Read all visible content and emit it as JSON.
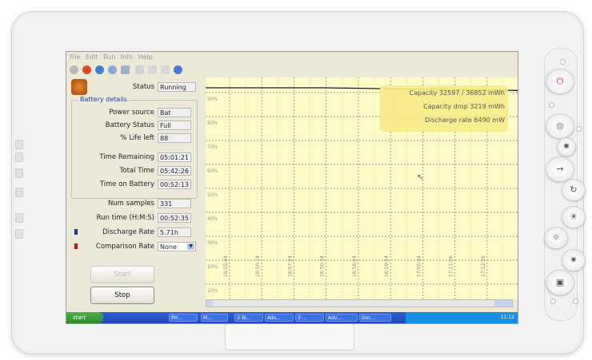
{
  "menu": [
    "File",
    "Edit",
    "Run",
    "Info",
    "Help"
  ],
  "status": {
    "label": "Status",
    "value": "Running"
  },
  "battery_details": {
    "title": "Battery details",
    "rows": [
      {
        "label": "Power source",
        "value": "Bat"
      },
      {
        "label": "Battery Status",
        "value": "Full"
      },
      {
        "label": "% Life left",
        "value": "88"
      },
      {
        "label": "Time Remaining",
        "value": "05:01:21"
      },
      {
        "label": "Total Time",
        "value": "05:42:26"
      },
      {
        "label": "Time on Battery",
        "value": "00:52:13"
      }
    ]
  },
  "stats": {
    "num_samples": {
      "label": "Num samples",
      "value": "331"
    },
    "run_time": {
      "label": "Run time (H:M:S)",
      "value": "00:52:35"
    },
    "discharge_rate": {
      "label": "Discharge Rate",
      "value": "5.71h"
    },
    "comparison_rate": {
      "label": "Comparison Rate",
      "value": "None"
    }
  },
  "buttons": {
    "start": "Start",
    "stop": "Stop"
  },
  "colors": {
    "discharge_marker": "#1f2f9e",
    "comparison_marker": "#d01010",
    "chart_bg": "#fffbc9",
    "tooltip_bg": "#f7eb87"
  },
  "chart_data": {
    "type": "line",
    "y_ticks": [
      "90%",
      "80%",
      "70%",
      "60%",
      "50%",
      "40%",
      "30%",
      "20%",
      "10%"
    ],
    "x_ticks": [
      "16:55:44",
      "16:50:14",
      "16:07:24",
      "16:50:34",
      "16:58:04",
      "16:59:54",
      "17:00:44",
      "17:11:06",
      "17:12:26"
    ],
    "series": [
      {
        "values": [
          92,
          92,
          92,
          92,
          91.8,
          91.5,
          91.3,
          91.1,
          90.9
        ]
      }
    ],
    "ylim": [
      5,
      95
    ],
    "info": [
      "Capacity 32597 / 36852 mWh",
      "Capacity drop 3219 mWh",
      "Discharge rate 6490 mW"
    ],
    "grid": true
  },
  "taskbar": {
    "start": "start",
    "items": [
      "PH...",
      "M...",
      "3 W...",
      "Adv...",
      "3 ...",
      "Adv...",
      "Doc..."
    ],
    "clock": "11:12"
  },
  "hardware_buttons": [
    "power-icon",
    "wifi-icon",
    "bluetooth-icon",
    "enter-icon",
    "rotate-icon",
    "brightness-up-icon",
    "brightness-down-icon",
    "camera-icon",
    "card-icon"
  ]
}
